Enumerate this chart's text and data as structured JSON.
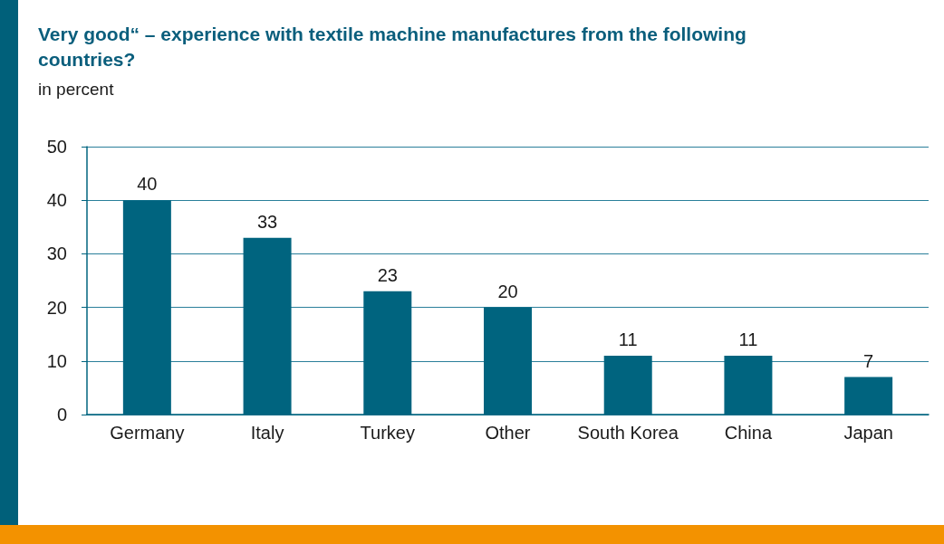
{
  "chart_data": {
    "type": "bar",
    "title": "Very good“ – experience with textile machine manufactures from the following countries?",
    "subtitle": "in percent",
    "categories": [
      "Germany",
      "Italy",
      "Turkey",
      "Other",
      "South Korea",
      "China",
      "Japan"
    ],
    "values": [
      40,
      33,
      23,
      20,
      11,
      11,
      7
    ],
    "color": "#00647f",
    "ylim": [
      0,
      50
    ],
    "yticks": [
      0,
      10,
      20,
      30,
      40,
      50
    ],
    "grid": "y",
    "data_labels": true
  }
}
